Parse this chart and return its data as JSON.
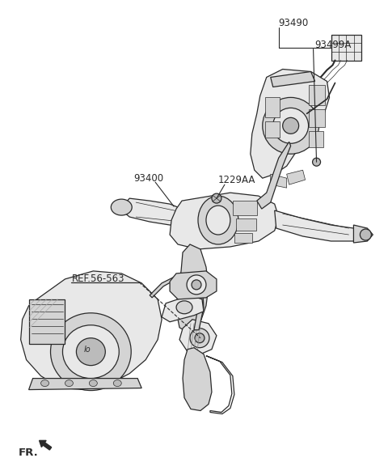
{
  "bg": "#ffffff",
  "fig_w": 4.8,
  "fig_h": 5.87,
  "dpi": 100,
  "lc": "#2a2a2a",
  "fc_light": "#e8e8e8",
  "fc_mid": "#d4d4d4",
  "fc_dark": "#bbbbbb",
  "lw_main": 0.9,
  "lw_thin": 0.5,
  "labels": {
    "93490": {
      "xf": 0.595,
      "yf": 0.946,
      "fs": 8.2
    },
    "93499A": {
      "xf": 0.72,
      "yf": 0.912,
      "fs": 8.2
    },
    "93400": {
      "xf": 0.285,
      "yf": 0.77,
      "fs": 8.2
    },
    "1229AA": {
      "xf": 0.435,
      "yf": 0.728,
      "fs": 8.2
    },
    "REF56563": {
      "xf": 0.14,
      "yf": 0.563,
      "fs": 8.2,
      "text": "REF.56-563"
    }
  },
  "fr": {
    "xf": 0.04,
    "yf": 0.052,
    "fs": 9.0
  }
}
